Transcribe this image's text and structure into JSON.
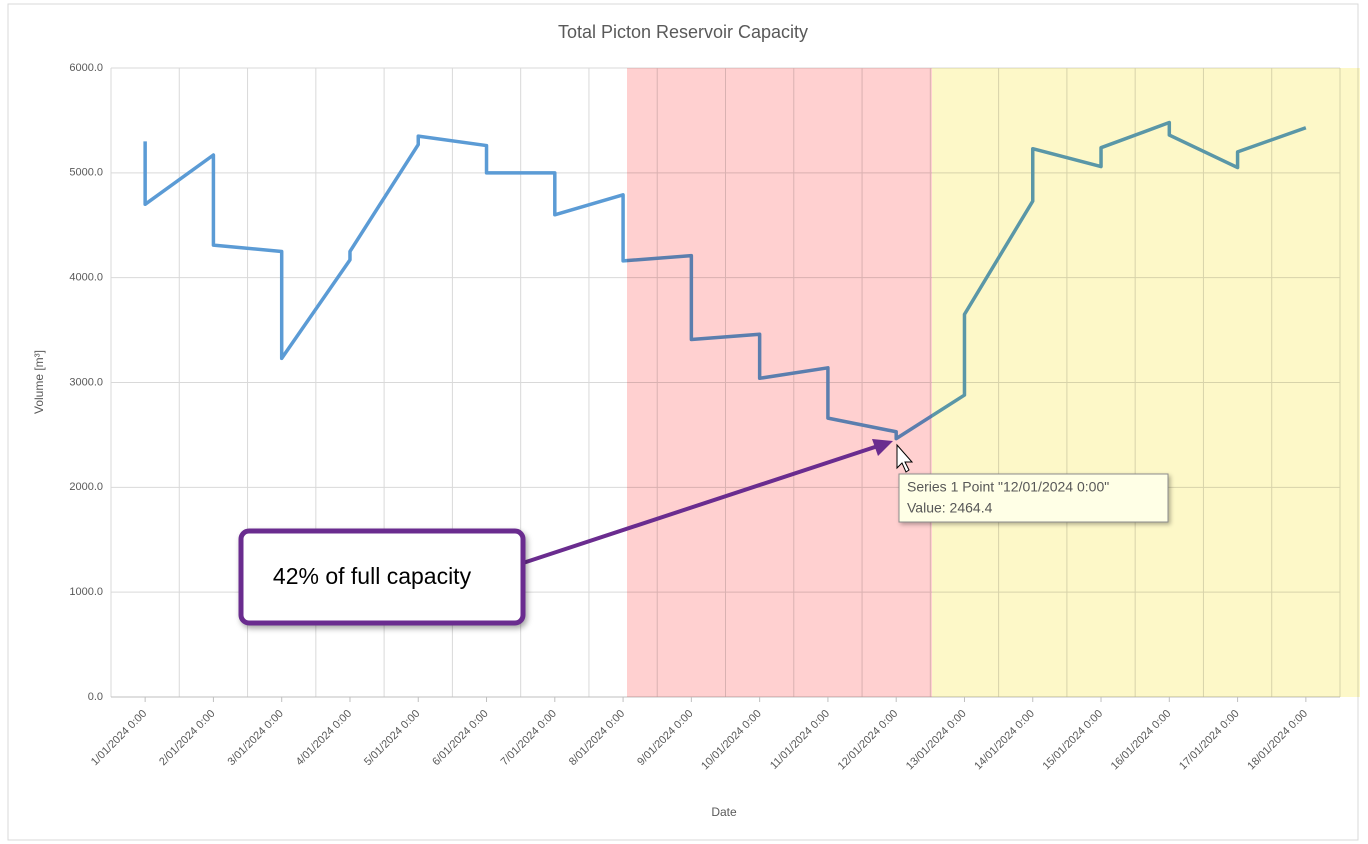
{
  "chart_data": {
    "type": "line",
    "title": "Total Picton Reservoir Capacity",
    "x_label": "Date",
    "y_label": "Volume [m³]",
    "categories": [
      "1/01/2024 0:00",
      "2/01/2024 0:00",
      "3/01/2024 0:00",
      "4/01/2024 0:00",
      "5/01/2024 0:00",
      "6/01/2024 0:00",
      "7/01/2024 0:00",
      "8/01/2024 0:00",
      "9/01/2024 0:00",
      "10/01/2024 0:00",
      "11/01/2024 0:00",
      "12/01/2024 0:00",
      "13/01/2024 0:00",
      "14/01/2024 0:00",
      "15/01/2024 0:00",
      "16/01/2024 0:00",
      "17/01/2024 0:00",
      "18/01/2024 0:00"
    ],
    "series": [
      {
        "name": "Series 1",
        "color": "#5b9bd5",
        "x": [
          "1/01/2024 0:00",
          "1/01/2024 0:00",
          "2/01/2024 0:00",
          "2/01/2024 0:00",
          "3/01/2024 0:00",
          "3/01/2024 0:00",
          "4/01/2024 0:00",
          "4/01/2024 0:00",
          "5/01/2024 0:00",
          "5/01/2024 0:00",
          "6/01/2024 0:00",
          "6/01/2024 0:00",
          "7/01/2024 0:00",
          "7/01/2024 0:00",
          "8/01/2024 0:00",
          "8/01/2024 0:00",
          "9/01/2024 0:00",
          "9/01/2024 0:00",
          "10/01/2024 0:00",
          "10/01/2024 0:00",
          "11/01/2024 0:00",
          "11/01/2024 0:00",
          "12/01/2024 0:00",
          "12/01/2024 0:00",
          "13/01/2024 0:00",
          "13/01/2024 0:00",
          "14/01/2024 0:00",
          "14/01/2024 0:00",
          "15/01/2024 0:00",
          "15/01/2024 0:00",
          "16/01/2024 0:00",
          "16/01/2024 0:00",
          "17/01/2024 0:00",
          "17/01/2024 0:00",
          "18/01/2024 0:00"
        ],
        "values": [
          5300,
          4700,
          5170,
          4310,
          4250,
          3230,
          4170,
          4250,
          5270,
          5350,
          5260,
          5000,
          5000,
          4600,
          4790,
          4160,
          4210,
          3410,
          3460,
          3040,
          3140,
          2660,
          2530,
          2464.4,
          2880,
          3650,
          4730,
          5230,
          5060,
          5240,
          5480,
          5360,
          5050,
          5200,
          5430
        ]
      }
    ],
    "ylim": [
      0,
      6000
    ],
    "yticks": [
      {
        "value": 0,
        "label": "0.0"
      },
      {
        "value": 1000,
        "label": "1000.0"
      },
      {
        "value": 2000,
        "label": "2000.0"
      },
      {
        "value": 3000,
        "label": "3000.0"
      },
      {
        "value": 4000,
        "label": "4000.0"
      },
      {
        "value": 5000,
        "label": "5000.0"
      },
      {
        "value": 6000,
        "label": "6000.0"
      }
    ],
    "grid": true,
    "annotations": {
      "callout": "42% of full capacity",
      "tooltip_title": "Series 1 Point \"12/01/2024 0:00\"",
      "tooltip_value": "Value: 2464.4"
    }
  }
}
